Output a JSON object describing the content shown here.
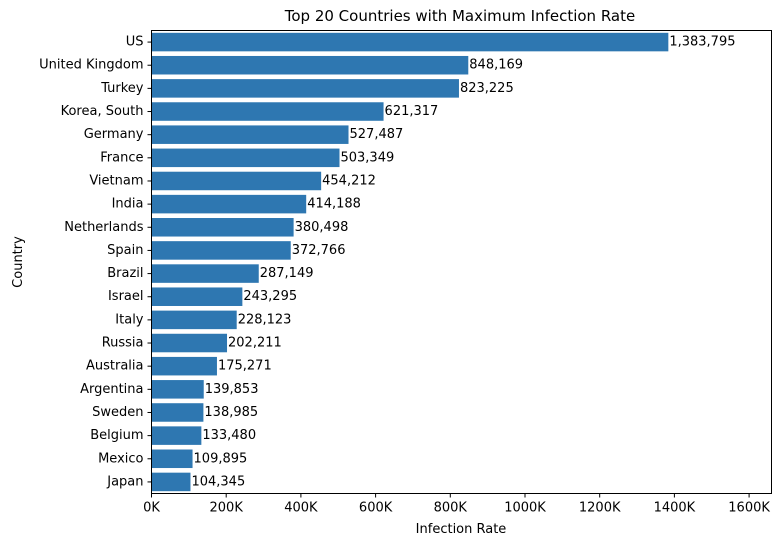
{
  "chart_data": {
    "type": "bar",
    "orientation": "horizontal",
    "title": "Top 20 Countries with Maximum Infection Rate",
    "xlabel": "Infection Rate",
    "ylabel": "Country",
    "xlim": [
      0,
      1660000
    ],
    "xticks": [
      0,
      200000,
      400000,
      600000,
      800000,
      1000000,
      1200000,
      1400000,
      1600000
    ],
    "xtick_labels": [
      "0K",
      "200K",
      "400K",
      "600K",
      "800K",
      "1000K",
      "1200K",
      "1400K",
      "1600K"
    ],
    "grid": false,
    "bar_color": "#2e77b1",
    "categories": [
      "US",
      "United Kingdom",
      "Turkey",
      "Korea, South",
      "Germany",
      "France",
      "Vietnam",
      "India",
      "Netherlands",
      "Spain",
      "Brazil",
      "Israel",
      "Italy",
      "Russia",
      "Australia",
      "Argentina",
      "Sweden",
      "Belgium",
      "Mexico",
      "Japan"
    ],
    "values": [
      1383795,
      848169,
      823225,
      621317,
      527487,
      503349,
      454212,
      414188,
      380498,
      372766,
      287149,
      243295,
      228123,
      202211,
      175271,
      139853,
      138985,
      133480,
      109895,
      104345
    ],
    "value_labels": [
      "1,383,795",
      "848,169",
      "823,225",
      "621,317",
      "527,487",
      "503,349",
      "454,212",
      "414,188",
      "380,498",
      "372,766",
      "287,149",
      "243,295",
      "228,123",
      "202,211",
      "175,271",
      "139,853",
      "138,985",
      "133,480",
      "109,895",
      "104,345"
    ]
  }
}
